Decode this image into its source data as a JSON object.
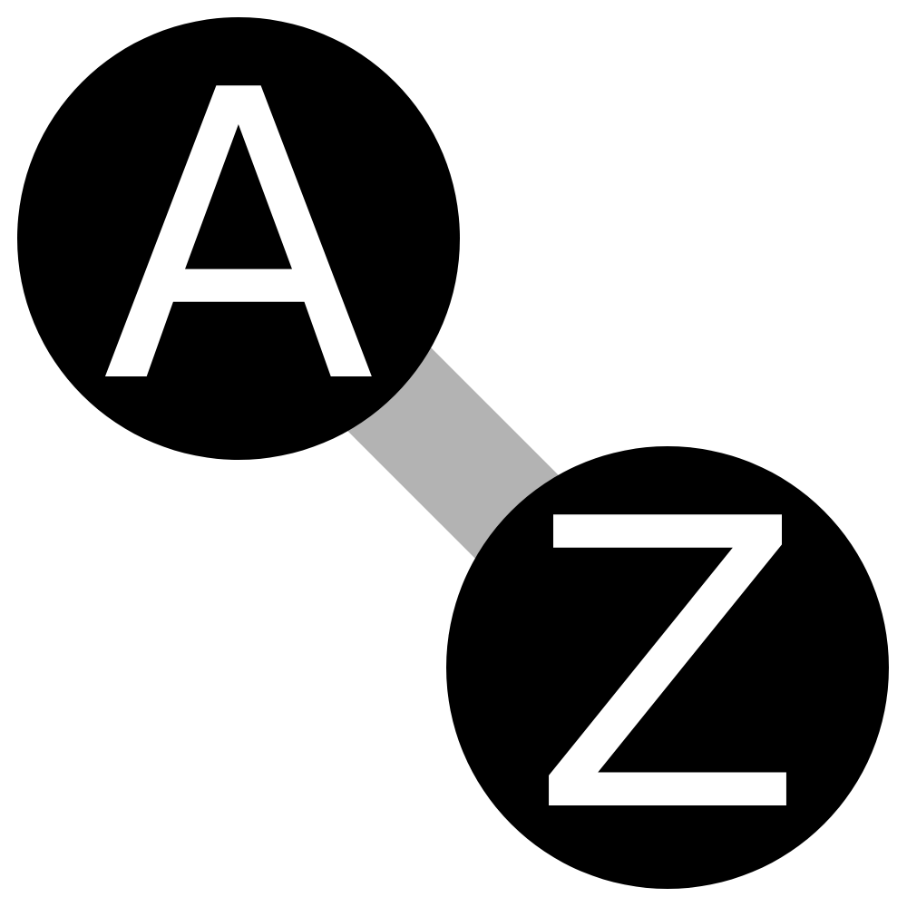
{
  "diagram": {
    "nodes": [
      {
        "id": "a",
        "label": "A"
      },
      {
        "id": "z",
        "label": "Z"
      }
    ],
    "edges": [
      {
        "from": "a",
        "to": "z"
      }
    ],
    "colors": {
      "background": "#ffffff",
      "node_fill": "#000000",
      "label": "#ffffff",
      "connector": "#b3b3b3"
    }
  }
}
